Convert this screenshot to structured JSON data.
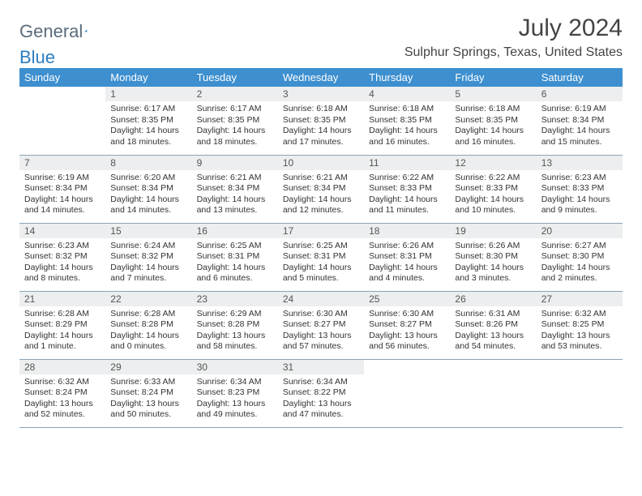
{
  "brand": {
    "left": "General",
    "right": "Blue"
  },
  "title": "July 2024",
  "location": "Sulphur Springs, Texas, United States",
  "colors": {
    "header_bg": "#3d8fcf",
    "daynum_bg": "#eceeef",
    "rule": "#8aa4b5",
    "brand_blue": "#2a7dc0"
  },
  "weekdays": [
    "Sunday",
    "Monday",
    "Tuesday",
    "Wednesday",
    "Thursday",
    "Friday",
    "Saturday"
  ],
  "weeks": [
    [
      {
        "n": "",
        "sunrise": "",
        "sunset": "",
        "daylight": ""
      },
      {
        "n": "1",
        "sunrise": "Sunrise: 6:17 AM",
        "sunset": "Sunset: 8:35 PM",
        "daylight": "Daylight: 14 hours and 18 minutes."
      },
      {
        "n": "2",
        "sunrise": "Sunrise: 6:17 AM",
        "sunset": "Sunset: 8:35 PM",
        "daylight": "Daylight: 14 hours and 18 minutes."
      },
      {
        "n": "3",
        "sunrise": "Sunrise: 6:18 AM",
        "sunset": "Sunset: 8:35 PM",
        "daylight": "Daylight: 14 hours and 17 minutes."
      },
      {
        "n": "4",
        "sunrise": "Sunrise: 6:18 AM",
        "sunset": "Sunset: 8:35 PM",
        "daylight": "Daylight: 14 hours and 16 minutes."
      },
      {
        "n": "5",
        "sunrise": "Sunrise: 6:18 AM",
        "sunset": "Sunset: 8:35 PM",
        "daylight": "Daylight: 14 hours and 16 minutes."
      },
      {
        "n": "6",
        "sunrise": "Sunrise: 6:19 AM",
        "sunset": "Sunset: 8:34 PM",
        "daylight": "Daylight: 14 hours and 15 minutes."
      }
    ],
    [
      {
        "n": "7",
        "sunrise": "Sunrise: 6:19 AM",
        "sunset": "Sunset: 8:34 PM",
        "daylight": "Daylight: 14 hours and 14 minutes."
      },
      {
        "n": "8",
        "sunrise": "Sunrise: 6:20 AM",
        "sunset": "Sunset: 8:34 PM",
        "daylight": "Daylight: 14 hours and 14 minutes."
      },
      {
        "n": "9",
        "sunrise": "Sunrise: 6:21 AM",
        "sunset": "Sunset: 8:34 PM",
        "daylight": "Daylight: 14 hours and 13 minutes."
      },
      {
        "n": "10",
        "sunrise": "Sunrise: 6:21 AM",
        "sunset": "Sunset: 8:34 PM",
        "daylight": "Daylight: 14 hours and 12 minutes."
      },
      {
        "n": "11",
        "sunrise": "Sunrise: 6:22 AM",
        "sunset": "Sunset: 8:33 PM",
        "daylight": "Daylight: 14 hours and 11 minutes."
      },
      {
        "n": "12",
        "sunrise": "Sunrise: 6:22 AM",
        "sunset": "Sunset: 8:33 PM",
        "daylight": "Daylight: 14 hours and 10 minutes."
      },
      {
        "n": "13",
        "sunrise": "Sunrise: 6:23 AM",
        "sunset": "Sunset: 8:33 PM",
        "daylight": "Daylight: 14 hours and 9 minutes."
      }
    ],
    [
      {
        "n": "14",
        "sunrise": "Sunrise: 6:23 AM",
        "sunset": "Sunset: 8:32 PM",
        "daylight": "Daylight: 14 hours and 8 minutes."
      },
      {
        "n": "15",
        "sunrise": "Sunrise: 6:24 AM",
        "sunset": "Sunset: 8:32 PM",
        "daylight": "Daylight: 14 hours and 7 minutes."
      },
      {
        "n": "16",
        "sunrise": "Sunrise: 6:25 AM",
        "sunset": "Sunset: 8:31 PM",
        "daylight": "Daylight: 14 hours and 6 minutes."
      },
      {
        "n": "17",
        "sunrise": "Sunrise: 6:25 AM",
        "sunset": "Sunset: 8:31 PM",
        "daylight": "Daylight: 14 hours and 5 minutes."
      },
      {
        "n": "18",
        "sunrise": "Sunrise: 6:26 AM",
        "sunset": "Sunset: 8:31 PM",
        "daylight": "Daylight: 14 hours and 4 minutes."
      },
      {
        "n": "19",
        "sunrise": "Sunrise: 6:26 AM",
        "sunset": "Sunset: 8:30 PM",
        "daylight": "Daylight: 14 hours and 3 minutes."
      },
      {
        "n": "20",
        "sunrise": "Sunrise: 6:27 AM",
        "sunset": "Sunset: 8:30 PM",
        "daylight": "Daylight: 14 hours and 2 minutes."
      }
    ],
    [
      {
        "n": "21",
        "sunrise": "Sunrise: 6:28 AM",
        "sunset": "Sunset: 8:29 PM",
        "daylight": "Daylight: 14 hours and 1 minute."
      },
      {
        "n": "22",
        "sunrise": "Sunrise: 6:28 AM",
        "sunset": "Sunset: 8:28 PM",
        "daylight": "Daylight: 14 hours and 0 minutes."
      },
      {
        "n": "23",
        "sunrise": "Sunrise: 6:29 AM",
        "sunset": "Sunset: 8:28 PM",
        "daylight": "Daylight: 13 hours and 58 minutes."
      },
      {
        "n": "24",
        "sunrise": "Sunrise: 6:30 AM",
        "sunset": "Sunset: 8:27 PM",
        "daylight": "Daylight: 13 hours and 57 minutes."
      },
      {
        "n": "25",
        "sunrise": "Sunrise: 6:30 AM",
        "sunset": "Sunset: 8:27 PM",
        "daylight": "Daylight: 13 hours and 56 minutes."
      },
      {
        "n": "26",
        "sunrise": "Sunrise: 6:31 AM",
        "sunset": "Sunset: 8:26 PM",
        "daylight": "Daylight: 13 hours and 54 minutes."
      },
      {
        "n": "27",
        "sunrise": "Sunrise: 6:32 AM",
        "sunset": "Sunset: 8:25 PM",
        "daylight": "Daylight: 13 hours and 53 minutes."
      }
    ],
    [
      {
        "n": "28",
        "sunrise": "Sunrise: 6:32 AM",
        "sunset": "Sunset: 8:24 PM",
        "daylight": "Daylight: 13 hours and 52 minutes."
      },
      {
        "n": "29",
        "sunrise": "Sunrise: 6:33 AM",
        "sunset": "Sunset: 8:24 PM",
        "daylight": "Daylight: 13 hours and 50 minutes."
      },
      {
        "n": "30",
        "sunrise": "Sunrise: 6:34 AM",
        "sunset": "Sunset: 8:23 PM",
        "daylight": "Daylight: 13 hours and 49 minutes."
      },
      {
        "n": "31",
        "sunrise": "Sunrise: 6:34 AM",
        "sunset": "Sunset: 8:22 PM",
        "daylight": "Daylight: 13 hours and 47 minutes."
      },
      {
        "n": "",
        "sunrise": "",
        "sunset": "",
        "daylight": ""
      },
      {
        "n": "",
        "sunrise": "",
        "sunset": "",
        "daylight": ""
      },
      {
        "n": "",
        "sunrise": "",
        "sunset": "",
        "daylight": ""
      }
    ]
  ]
}
